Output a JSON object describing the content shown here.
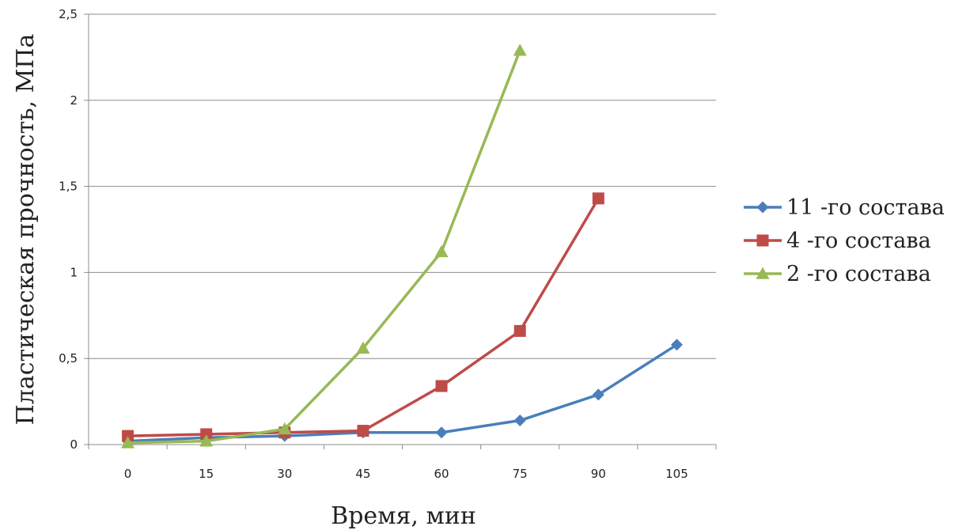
{
  "chart_data": {
    "type": "line",
    "xlabel": "Время, мин",
    "ylabel": "Пластическая прочность, МПа",
    "categories": [
      "0",
      "15",
      "30",
      "45",
      "60",
      "75",
      "90",
      "105"
    ],
    "ylim": [
      0,
      2.5
    ],
    "yticks": [
      "0",
      "0,5",
      "1",
      "1,5",
      "2",
      "2,5"
    ],
    "grid": true,
    "legend_position": "right",
    "series": [
      {
        "name": "11 -го состава",
        "color": "#4a7ebb",
        "marker": "diamond",
        "values": [
          0.02,
          0.04,
          0.05,
          0.07,
          0.07,
          0.14,
          0.29,
          0.58
        ]
      },
      {
        "name": "4 -го состава",
        "color": "#be4b48",
        "marker": "square",
        "values": [
          0.05,
          0.06,
          0.07,
          0.08,
          0.34,
          0.66,
          1.43,
          null
        ]
      },
      {
        "name": "2 -го состава",
        "color": "#98b954",
        "marker": "triangle",
        "values": [
          0.01,
          0.02,
          0.09,
          0.56,
          1.12,
          2.29,
          null,
          null
        ]
      }
    ]
  }
}
